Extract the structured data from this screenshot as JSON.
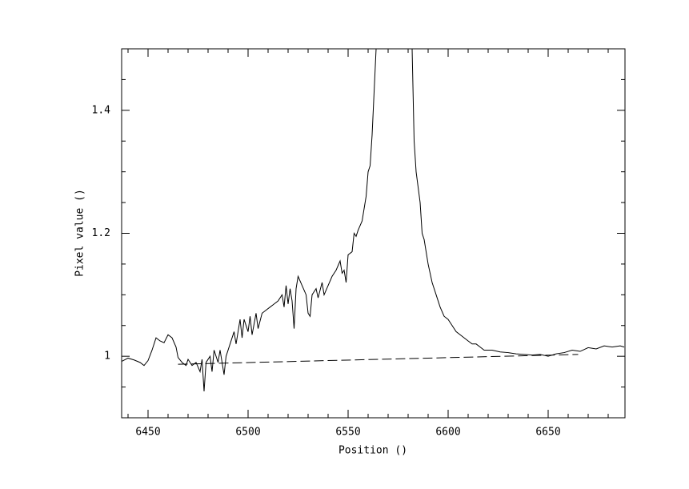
{
  "chart_data": {
    "type": "line",
    "xlabel": "Position ()",
    "ylabel": "Pixel value ()",
    "xlim": [
      6436.8,
      6688.4
    ],
    "ylim": [
      0.9,
      1.5
    ],
    "xticks": [
      6450,
      6500,
      6550,
      6600,
      6650
    ],
    "yticks": [
      1,
      1.2,
      1.4
    ],
    "xminorticks": [
      6440,
      6460,
      6470,
      6480,
      6490,
      6510,
      6520,
      6530,
      6540,
      6560,
      6570,
      6580,
      6590,
      6610,
      6620,
      6630,
      6640,
      6660,
      6670,
      6680
    ],
    "yminorticks": [
      0.95,
      1.05,
      1.1,
      1.15,
      1.25,
      1.3,
      1.35,
      1.45
    ],
    "series": [
      {
        "color": "#000000",
        "dash": false,
        "x": [
          6437,
          6440,
          6443,
          6446,
          6448,
          6450,
          6452,
          6454,
          6456,
          6458,
          6460,
          6462,
          6464,
          6465,
          6467,
          6469,
          6470,
          6472,
          6474,
          6476,
          6477,
          6478,
          6479,
          6481,
          6482,
          6483,
          6485,
          6486,
          6488,
          6489,
          6491,
          6493,
          6494,
          6496,
          6497,
          6498,
          6500,
          6501,
          6502,
          6504,
          6505,
          6507,
          6509,
          6511,
          6513,
          6515,
          6517,
          6518,
          6519,
          6520,
          6521,
          6522,
          6523,
          6524,
          6525,
          6527,
          6529,
          6530,
          6531,
          6532,
          6534,
          6535,
          6537,
          6538,
          6540,
          6542,
          6544,
          6546,
          6547,
          6548,
          6549,
          6550,
          6552,
          6553,
          6554,
          6555,
          6557,
          6559,
          6560,
          6561,
          6562,
          6563,
          6564,
          6582,
          6583,
          6584,
          6586,
          6587,
          6588,
          6590,
          6592,
          6594,
          6596,
          6598,
          6600,
          6602,
          6604,
          6606,
          6608,
          6610,
          6612,
          6614,
          6616,
          6618,
          6622,
          6626,
          6630,
          6634,
          6638,
          6642,
          6646,
          6650,
          6654,
          6658,
          6662,
          6666,
          6670,
          6674,
          6678,
          6682,
          6686,
          6688
        ],
        "values": [
          0.992,
          0.997,
          0.994,
          0.99,
          0.985,
          0.993,
          1.01,
          1.03,
          1.025,
          1.022,
          1.035,
          1.03,
          1.015,
          0.998,
          0.99,
          0.985,
          0.995,
          0.985,
          0.99,
          0.975,
          0.995,
          0.943,
          0.99,
          1.0,
          0.975,
          1.01,
          0.99,
          1.01,
          0.97,
          1.0,
          1.02,
          1.04,
          1.02,
          1.06,
          1.03,
          1.06,
          1.04,
          1.065,
          1.035,
          1.07,
          1.045,
          1.07,
          1.075,
          1.08,
          1.085,
          1.09,
          1.1,
          1.08,
          1.115,
          1.085,
          1.11,
          1.09,
          1.045,
          1.11,
          1.13,
          1.115,
          1.1,
          1.07,
          1.065,
          1.1,
          1.11,
          1.095,
          1.12,
          1.1,
          1.115,
          1.13,
          1.14,
          1.155,
          1.135,
          1.14,
          1.12,
          1.165,
          1.17,
          1.2,
          1.195,
          1.205,
          1.22,
          1.26,
          1.3,
          1.31,
          1.36,
          1.43,
          1.5,
          1.5,
          1.35,
          1.3,
          1.25,
          1.2,
          1.19,
          1.15,
          1.12,
          1.1,
          1.08,
          1.065,
          1.06,
          1.05,
          1.04,
          1.035,
          1.03,
          1.025,
          1.02,
          1.02,
          1.015,
          1.01,
          1.01,
          1.007,
          1.006,
          1.004,
          1.003,
          1.002,
          1.003,
          1.0,
          1.004,
          1.006,
          1.01,
          1.008,
          1.014,
          1.012,
          1.017,
          1.015,
          1.017,
          1.015
        ]
      },
      {
        "color": "#000000",
        "dash": true,
        "x": [
          6465,
          6665
        ],
        "values": [
          0.987,
          1.003
        ]
      }
    ]
  }
}
